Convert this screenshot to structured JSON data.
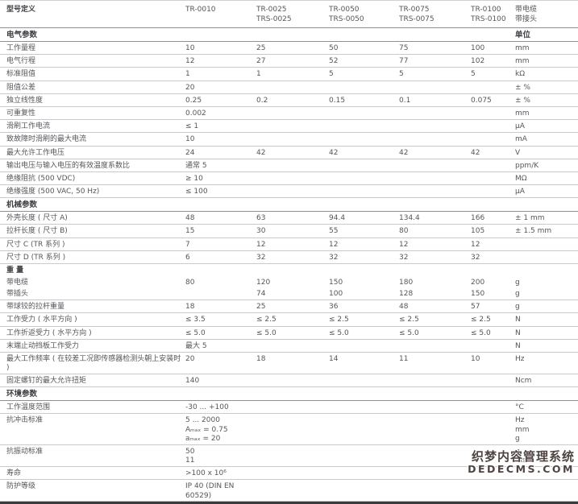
{
  "header": {
    "model_label": "型号定义",
    "models": [
      "TR-0010",
      "TR-0025\nTRS-0025",
      "TR-0050\nTRS-0050",
      "TR-0075\nTRS-0075",
      "TR-0100\nTRS-0100"
    ],
    "cable_note": "带电缆\n带接头"
  },
  "table": {
    "rows": [
      {
        "t": "sec",
        "label": "电气参数",
        "u": "单位"
      },
      {
        "t": "d",
        "label": "工作量程",
        "v": [
          "10",
          "25",
          "50",
          "75",
          "100"
        ],
        "u": "mm"
      },
      {
        "t": "d",
        "label": "电气行程",
        "v": [
          "12",
          "27",
          "52",
          "77",
          "102"
        ],
        "u": "mm"
      },
      {
        "t": "d",
        "label": "标准阻值",
        "v": [
          "1",
          "1",
          "5",
          "5",
          "5"
        ],
        "u": "kΩ"
      },
      {
        "t": "d",
        "label": "阻值公差",
        "v": [
          "20",
          "",
          "",
          "",
          ""
        ],
        "u": "± %"
      },
      {
        "t": "d",
        "label": "独立线性度",
        "v": [
          "0.25",
          "0.2",
          "0.15",
          "0.1",
          "0.075"
        ],
        "u": "± %"
      },
      {
        "t": "d",
        "label": "可重复性",
        "v": [
          "0.002",
          "",
          "",
          "",
          ""
        ],
        "u": "mm"
      },
      {
        "t": "d",
        "label": "滑刷工作电流",
        "v": [
          "≤ 1",
          "",
          "",
          "",
          ""
        ],
        "u": "µA"
      },
      {
        "t": "d",
        "label": "致故障时滑刷的最大电流",
        "v": [
          "10",
          "",
          "",
          "",
          ""
        ],
        "u": "mA"
      },
      {
        "t": "d",
        "label": "最大允许工作电压",
        "v": [
          "24",
          "42",
          "42",
          "42",
          "42"
        ],
        "u": "V"
      },
      {
        "t": "d",
        "label": "输出电压与输入电压的有效温度系数比",
        "v": [
          "通常 5",
          "",
          "",
          "",
          ""
        ],
        "u": "ppm/K"
      },
      {
        "t": "d",
        "label": "绝缘阻抗 (500 VDC)",
        "v": [
          "≥ 10",
          "",
          "",
          "",
          ""
        ],
        "u": "MΩ"
      },
      {
        "t": "d",
        "label": "绝缘强度 (500 VAC, 50 Hz)",
        "v": [
          "≤ 100",
          "",
          "",
          "",
          ""
        ],
        "u": "µA"
      },
      {
        "t": "sec",
        "label": "机械参数",
        "u": ""
      },
      {
        "t": "d",
        "label": "外壳长度 ( 尺寸 A)",
        "v": [
          "48",
          "63",
          "94.4",
          "134.4",
          "166"
        ],
        "u": "± 1 mm"
      },
      {
        "t": "d",
        "label": "拉杆长度 ( 尺寸 B)",
        "v": [
          "15",
          "30",
          "55",
          "80",
          "105"
        ],
        "u": "± 1.5 mm"
      },
      {
        "t": "d",
        "label": "尺寸 C (TR 系列 )",
        "v": [
          "7",
          "12",
          "12",
          "12",
          "12"
        ],
        "u": ""
      },
      {
        "t": "d",
        "label": "尺寸 D (TR 系列 )",
        "v": [
          "6",
          "32",
          "32",
          "32",
          "32"
        ],
        "u": ""
      },
      {
        "t": "d",
        "label": "重  量",
        "v": [
          "",
          "",
          "",
          "",
          ""
        ],
        "u": "",
        "bold": true,
        "noline": true
      },
      {
        "t": "d",
        "label": "带电缆",
        "v": [
          "80",
          "120",
          "150",
          "180",
          "200"
        ],
        "u": "g",
        "noline": true
      },
      {
        "t": "d",
        "label": "带插头",
        "v": [
          "",
          "74",
          "100",
          "128",
          "150"
        ],
        "u": "g"
      },
      {
        "t": "d",
        "label": "带球铰的拉杆重量",
        "v": [
          "18",
          "25",
          "36",
          "48",
          "57"
        ],
        "u": "g"
      },
      {
        "t": "d",
        "label": "工作受力 ( 水平方向 )",
        "v": [
          "≤ 3.5",
          "≤ 2.5",
          "≤ 2.5",
          "≤ 2.5",
          "≤ 2.5"
        ],
        "u": "N"
      },
      {
        "t": "d",
        "label": "工作折返受力 ( 水平方向 )",
        "v": [
          "≤ 5.0",
          "≤ 5.0",
          "≤ 5.0",
          "≤ 5.0",
          "≤ 5.0"
        ],
        "u": "N"
      },
      {
        "t": "d",
        "label": "末端止动挡板工作受力",
        "v": [
          "最大 5",
          "",
          "",
          "",
          ""
        ],
        "u": "N"
      },
      {
        "t": "d",
        "label": "最大工作频率 ( 在较差工况即传感器检测头朝上安装时 )",
        "v": [
          "20",
          "18",
          "14",
          "11",
          "10"
        ],
        "u": "Hz"
      },
      {
        "t": "d",
        "label": "固定螺钉的最大允许扭矩",
        "v": [
          "140",
          "",
          "",
          "",
          ""
        ],
        "u": "Ncm"
      },
      {
        "t": "sec",
        "label": "环境参数",
        "u": ""
      },
      {
        "t": "d",
        "label": "工作温度范围",
        "v": [
          "-30 ... +100",
          "",
          "",
          "",
          ""
        ],
        "u": "°C"
      },
      {
        "t": "d",
        "label": "抗冲击标准",
        "v": [
          "5 ... 2000\nAₘₐₓ = 0.75\naₘₐₓ = 20",
          "",
          "",
          "",
          ""
        ],
        "u": "Hz\nmm\ng"
      },
      {
        "t": "d",
        "label": "抗振动标准",
        "v": [
          "50\n11",
          "",
          "",
          "",
          ""
        ],
        "u": "g\nms"
      },
      {
        "t": "d",
        "label": "寿命",
        "v": [
          ">100 x 10⁶",
          "",
          "",
          "",
          ""
        ],
        "u": ""
      },
      {
        "t": "d",
        "label": "防护等级",
        "v": [
          "IP 40 (DIN EN 60529)",
          "",
          "",
          "",
          ""
        ],
        "u": ""
      }
    ]
  },
  "watermark": {
    "line1": "织梦内容管理系统",
    "line2": "DEDECMS.COM"
  }
}
